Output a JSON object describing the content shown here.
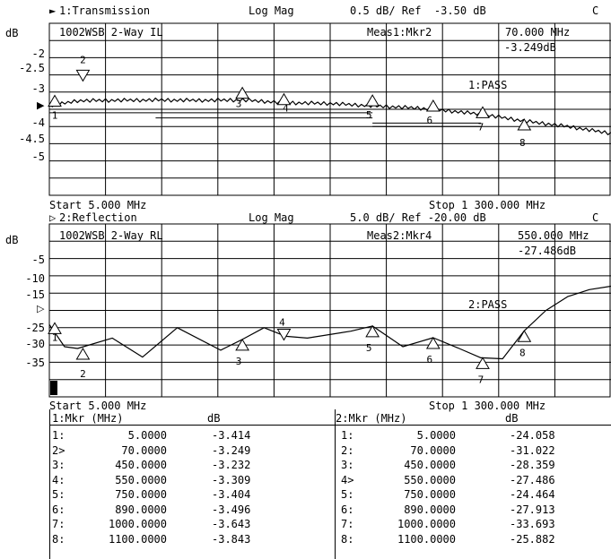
{
  "chart_data": [
    {
      "type": "line",
      "channel_label": "1:Transmission",
      "format": "Log Mag",
      "scale": "0.5 dB/ Ref  -3.50 dB",
      "coupling": "C",
      "title": "1002WSB 2-Way IL",
      "ylabel": "dB",
      "y_tick_labels": [
        "-2",
        "-2.5",
        "-3",
        "-4",
        "-4.5",
        "-5"
      ],
      "ylim": [
        -6.0,
        -1.0
      ],
      "xlim": [
        5,
        1300
      ],
      "start_label": "Start 5.000 MHz",
      "stop_label": "Stop 1 300.000 MHz",
      "active_marker": "Meas1:Mkr2",
      "active_marker_freq": "70.000 MHz",
      "active_marker_value": "-3.249dB",
      "limit_status": "1:PASS",
      "markers": [
        "1",
        "2",
        "3",
        "4",
        "5",
        "6",
        "7",
        "8"
      ],
      "series": [
        {
          "x": [
            5,
            70,
            150,
            250,
            350,
            450,
            550,
            650,
            750,
            850,
            890,
            1000,
            1100,
            1200,
            1300
          ],
          "values": [
            -3.41,
            -3.25,
            -3.24,
            -3.23,
            -3.24,
            -3.23,
            -3.31,
            -3.33,
            -3.4,
            -3.46,
            -3.5,
            -3.64,
            -3.84,
            -4.0,
            -4.2
          ]
        }
      ],
      "limit_lines": [
        {
          "x": [
            5,
            750
          ],
          "y": -3.6
        },
        {
          "x": [
            250,
            750
          ],
          "y": -3.75
        },
        {
          "x": [
            750,
            1000
          ],
          "y": -3.9
        },
        {
          "x": [
            750,
            1000
          ],
          "y": -4.0
        }
      ]
    },
    {
      "type": "line",
      "channel_label": "2:Reflection",
      "format": "Log Mag",
      "scale": "5.0 dB/ Ref -20.00 dB",
      "coupling": "C",
      "title": "1002WSB 2-Way RL",
      "ylabel": "dB",
      "y_tick_labels": [
        "-5",
        "-10",
        "-15",
        "-25",
        "-30",
        "-35"
      ],
      "ylim": [
        -45,
        5
      ],
      "xlim": [
        5,
        1300
      ],
      "start_label": "Start 5.000 MHz",
      "stop_label": "Stop 1 300.000 MHz",
      "active_marker": "Meas2:Mkr4",
      "active_marker_freq": "550.000 MHz",
      "active_marker_value": "-27.486dB",
      "limit_status": "2:PASS",
      "markers": [
        "1",
        "2",
        "3",
        "4",
        "5",
        "6",
        "7",
        "8"
      ],
      "series": [
        {
          "x": [
            5,
            40,
            70,
            150,
            220,
            300,
            400,
            450,
            500,
            550,
            600,
            700,
            750,
            820,
            890,
            950,
            1000,
            1050,
            1100,
            1150,
            1200,
            1250,
            1300
          ],
          "values": [
            -24.1,
            -30.5,
            -31.0,
            -28.0,
            -33.5,
            -25.0,
            -31.5,
            -28.4,
            -25.0,
            -27.5,
            -28.0,
            -26.0,
            -24.5,
            -30.5,
            -27.9,
            -31.0,
            -33.7,
            -34.0,
            -25.9,
            -20.0,
            -16.0,
            -14.0,
            -13.0
          ]
        }
      ]
    }
  ],
  "marker_tables": [
    {
      "header": "1:Mkr (MHz)",
      "unit": "dB",
      "rows": [
        {
          "id": "1:",
          "freq": "5.0000",
          "value": "-3.414"
        },
        {
          "id": "2>",
          "freq": "70.0000",
          "value": "-3.249"
        },
        {
          "id": "3:",
          "freq": "450.0000",
          "value": "-3.232"
        },
        {
          "id": "4:",
          "freq": "550.0000",
          "value": "-3.309"
        },
        {
          "id": "5:",
          "freq": "750.0000",
          "value": "-3.404"
        },
        {
          "id": "6:",
          "freq": "890.0000",
          "value": "-3.496"
        },
        {
          "id": "7:",
          "freq": "1000.0000",
          "value": "-3.643"
        },
        {
          "id": "8:",
          "freq": "1100.0000",
          "value": "-3.843"
        }
      ]
    },
    {
      "header": "2:Mkr (MHz)",
      "unit": "dB",
      "rows": [
        {
          "id": "1:",
          "freq": "5.0000",
          "value": "-24.058"
        },
        {
          "id": "2:",
          "freq": "70.0000",
          "value": "-31.022"
        },
        {
          "id": "3:",
          "freq": "450.0000",
          "value": "-28.359"
        },
        {
          "id": "4>",
          "freq": "550.0000",
          "value": "-27.486"
        },
        {
          "id": "5:",
          "freq": "750.0000",
          "value": "-24.464"
        },
        {
          "id": "6:",
          "freq": "890.0000",
          "value": "-27.913"
        },
        {
          "id": "7:",
          "freq": "1000.0000",
          "value": "-33.693"
        },
        {
          "id": "8:",
          "freq": "1100.0000",
          "value": "-25.882"
        }
      ]
    }
  ]
}
